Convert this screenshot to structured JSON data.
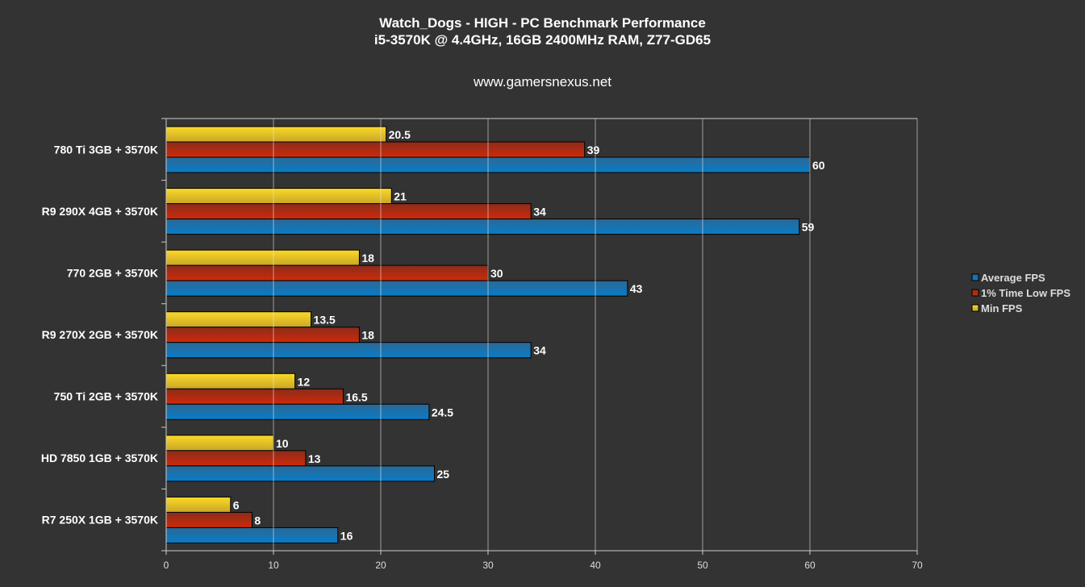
{
  "chart_data": {
    "type": "bar",
    "orientation": "horizontal",
    "title": "Watch_Dogs - HIGH - PC Benchmark Performance",
    "subtitle": "i5-3570K @ 4.4GHz, 16GB 2400MHz RAM, Z77-GD65",
    "source": "www.gamersnexus.net",
    "categories": [
      "780 Ti 3GB + 3570K",
      "R9 290X 4GB + 3570K",
      "770 2GB + 3570K",
      "R9 270X 2GB + 3570K",
      "750 Ti 2GB + 3570K",
      "HD 7850 1GB + 3570K",
      "R7 250X 1GB + 3570K"
    ],
    "series": [
      {
        "name": "Min FPS",
        "color": "#e8c62a",
        "values": [
          20.5,
          21,
          18,
          13.5,
          12,
          10,
          6
        ]
      },
      {
        "name": "1% Time Low FPS",
        "color": "#c0280c",
        "values": [
          39,
          34,
          30,
          18,
          16.5,
          13,
          8
        ]
      },
      {
        "name": "Average FPS",
        "color": "#1178c0",
        "values": [
          60,
          59,
          43,
          34,
          24.5,
          25,
          16
        ]
      }
    ],
    "legend_order": [
      "Average FPS",
      "1% Time Low FPS",
      "Min FPS"
    ],
    "xlim": [
      0,
      70
    ],
    "xticks": [
      0,
      10,
      20,
      30,
      40,
      50,
      60,
      70
    ],
    "grid": true,
    "legend_position": "right"
  }
}
